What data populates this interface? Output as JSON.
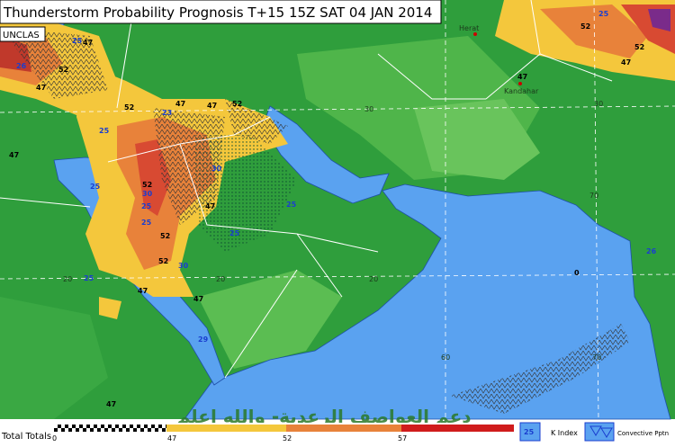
{
  "header": {
    "title": "Thunderstorm Probability Prognosis T+15 15Z SAT 04 JAN 2014",
    "classification": "UNCLAS"
  },
  "places": [
    "Herat",
    "Kandahar"
  ],
  "grid_labels": [
    "30",
    "30",
    "20",
    "20",
    "20",
    "60",
    "70",
    "70"
  ],
  "contour_labels": [
    "47",
    "52",
    "47",
    "26",
    "25",
    "52",
    "23",
    "47",
    "52",
    "25",
    "25",
    "30",
    "30",
    "47",
    "25",
    "25",
    "52",
    "52",
    "30",
    "47",
    "25",
    "47",
    "29",
    "47",
    "0",
    "47",
    "52",
    "52",
    "47",
    "26",
    "25",
    "47",
    "52",
    "47",
    "25",
    "25"
  ],
  "watermark": "دعم العواصف الرعدية- والله اعلم",
  "legend": {
    "title": "Total Totals",
    "ticks": [
      "0",
      "47",
      "52",
      "57"
    ],
    "k_index_sample": "25",
    "k_index": "K Index",
    "convective": "Convective Pptn"
  }
}
